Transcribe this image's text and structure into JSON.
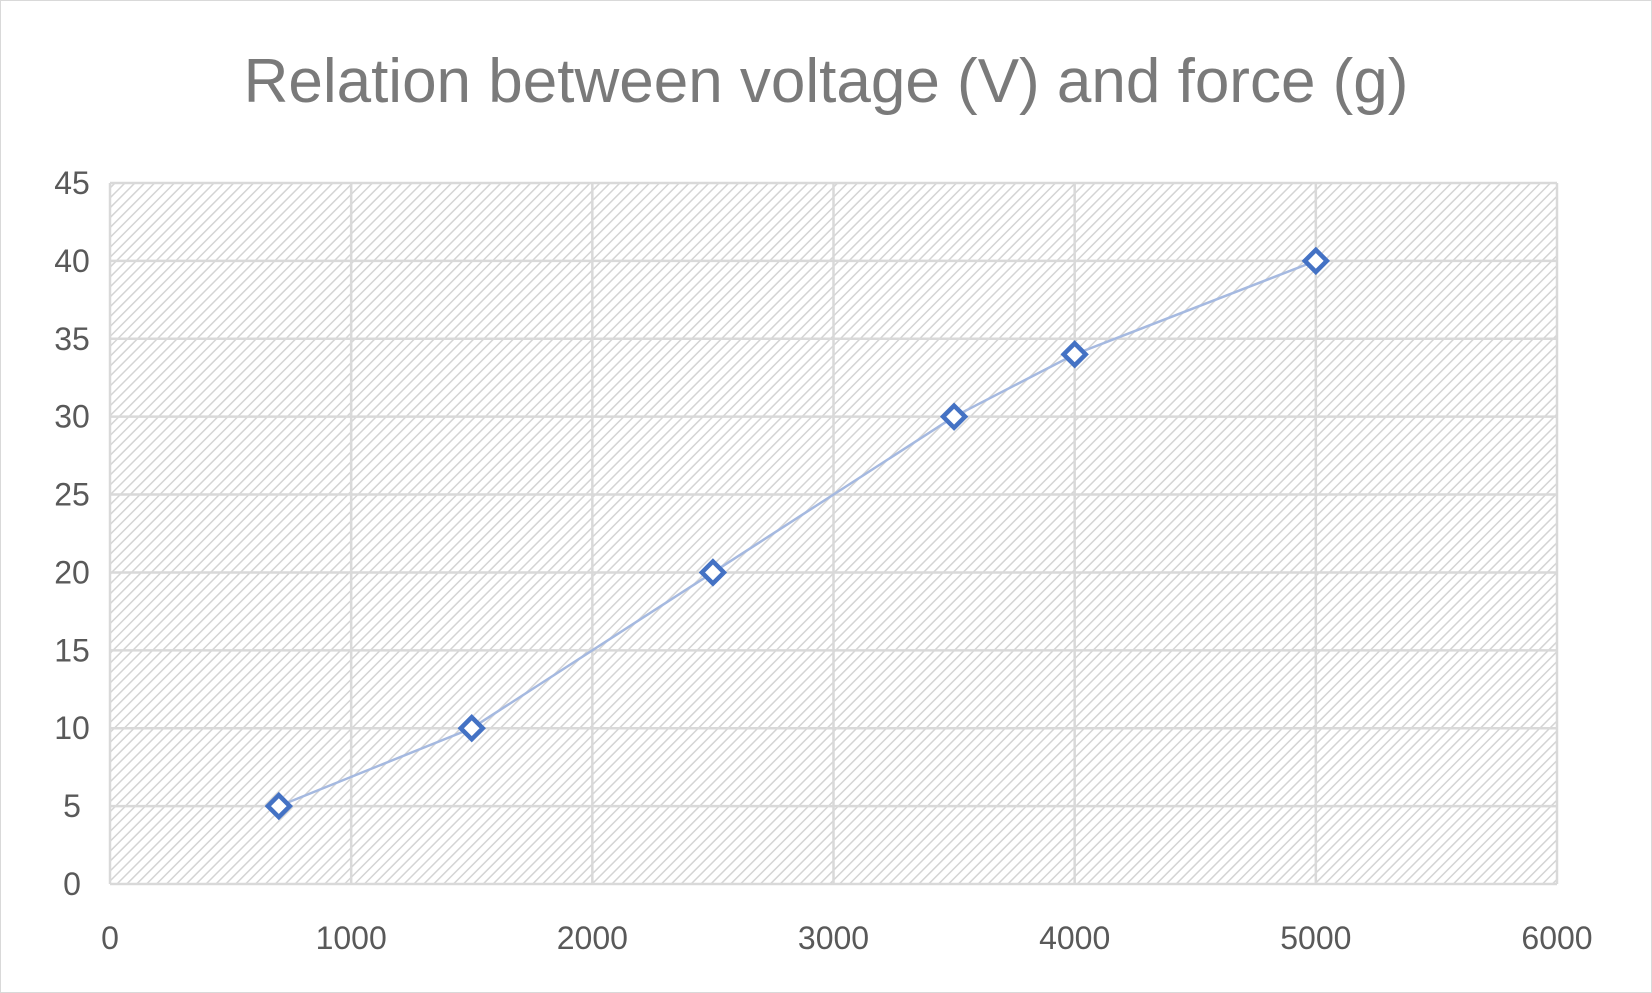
{
  "chart_data": {
    "type": "scatter",
    "title": "Relation between voltage (V) and force (g)",
    "xlabel": "",
    "ylabel": "",
    "xlim": [
      0,
      6000
    ],
    "ylim": [
      0,
      45
    ],
    "x_ticks": [
      0,
      1000,
      2000,
      3000,
      4000,
      5000,
      6000
    ],
    "y_ticks": [
      0,
      5,
      10,
      15,
      20,
      25,
      30,
      35,
      40,
      45
    ],
    "grid": true,
    "legend": "none",
    "series": [
      {
        "x": [
          700,
          1500,
          2500,
          3500,
          4000,
          5000
        ],
        "y": [
          5,
          10,
          20,
          30,
          34,
          40
        ],
        "marker": "diamond-open",
        "line": "straight",
        "marker_color": "#4472c4",
        "line_color": "#a5b9e0"
      }
    ],
    "colors": {
      "grid": "#d9d9d9",
      "hatch": "#d0d0d0",
      "tick_text": "#595959",
      "title_text": "#7a7a7a"
    }
  }
}
